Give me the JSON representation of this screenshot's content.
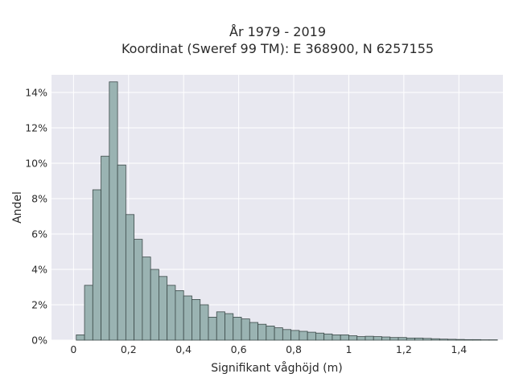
{
  "chart_data": {
    "type": "bar",
    "title_line1": "År 1979 - 2019",
    "title_line2": "Koordinat (Sweref 99 TM): E 368900, N 6257155",
    "xlabel": "Signifikant våghöjd (m)",
    "ylabel": "Andel",
    "xlim": [
      -0.08,
      1.56
    ],
    "ylim": [
      0,
      15
    ],
    "x_ticks": [
      0,
      0.2,
      0.4,
      0.6,
      0.8,
      1.0,
      1.2,
      1.4
    ],
    "x_tick_labels": [
      "0",
      "0,2",
      "0,4",
      "0,6",
      "0,8",
      "1",
      "1,2",
      "1,4"
    ],
    "y_ticks": [
      0,
      2,
      4,
      6,
      8,
      10,
      12,
      14
    ],
    "y_tick_labels": [
      "0%",
      "2%",
      "4%",
      "6%",
      "8%",
      "10%",
      "12%",
      "14%"
    ],
    "grid": true,
    "bin_width": 0.03,
    "bin_start": 0.01,
    "values": [
      0.3,
      3.1,
      8.5,
      10.4,
      14.6,
      9.9,
      7.1,
      5.7,
      4.7,
      4.0,
      3.6,
      3.1,
      2.8,
      2.5,
      2.3,
      2.0,
      1.3,
      1.6,
      1.5,
      1.3,
      1.2,
      1.0,
      0.9,
      0.8,
      0.7,
      0.6,
      0.55,
      0.5,
      0.45,
      0.4,
      0.35,
      0.3,
      0.3,
      0.25,
      0.2,
      0.22,
      0.2,
      0.18,
      0.15,
      0.15,
      0.12,
      0.12,
      0.1,
      0.08,
      0.06,
      0.05,
      0.04,
      0.03,
      0.03,
      0.02,
      0.02
    ],
    "colors": {
      "bar_fill": "#9ab3b2",
      "bar_stroke": "#3c4a49",
      "plot_bg": "#e8e8f0",
      "grid": "#ffffff"
    }
  }
}
